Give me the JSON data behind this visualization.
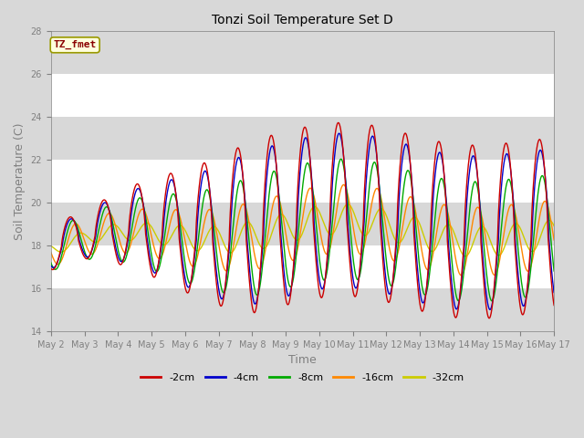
{
  "title": "Tonzi Soil Temperature Set D",
  "xlabel": "Time",
  "ylabel": "Soil Temperature (C)",
  "ylim": [
    14,
    28
  ],
  "annotation": "TZ_fmet",
  "annotation_color": "#8B0000",
  "annotation_bg": "#FFFFDD",
  "series_colors": [
    "#CC0000",
    "#0000CC",
    "#00AA00",
    "#FF8800",
    "#CCCC00"
  ],
  "series_labels": [
    "-2cm",
    "-4cm",
    "-8cm",
    "-16cm",
    "-32cm"
  ],
  "x_tick_labels": [
    "May 2",
    "May 3",
    "May 4",
    "May 5",
    "May 6",
    "May 7",
    "May 8",
    "May 9",
    "May 10",
    "May 11",
    "May 12",
    "May 13",
    "May 14",
    "May 15",
    "May 16",
    "May 17"
  ],
  "bg_color": "#D8D8D8",
  "band_color": "#E8E8E8"
}
